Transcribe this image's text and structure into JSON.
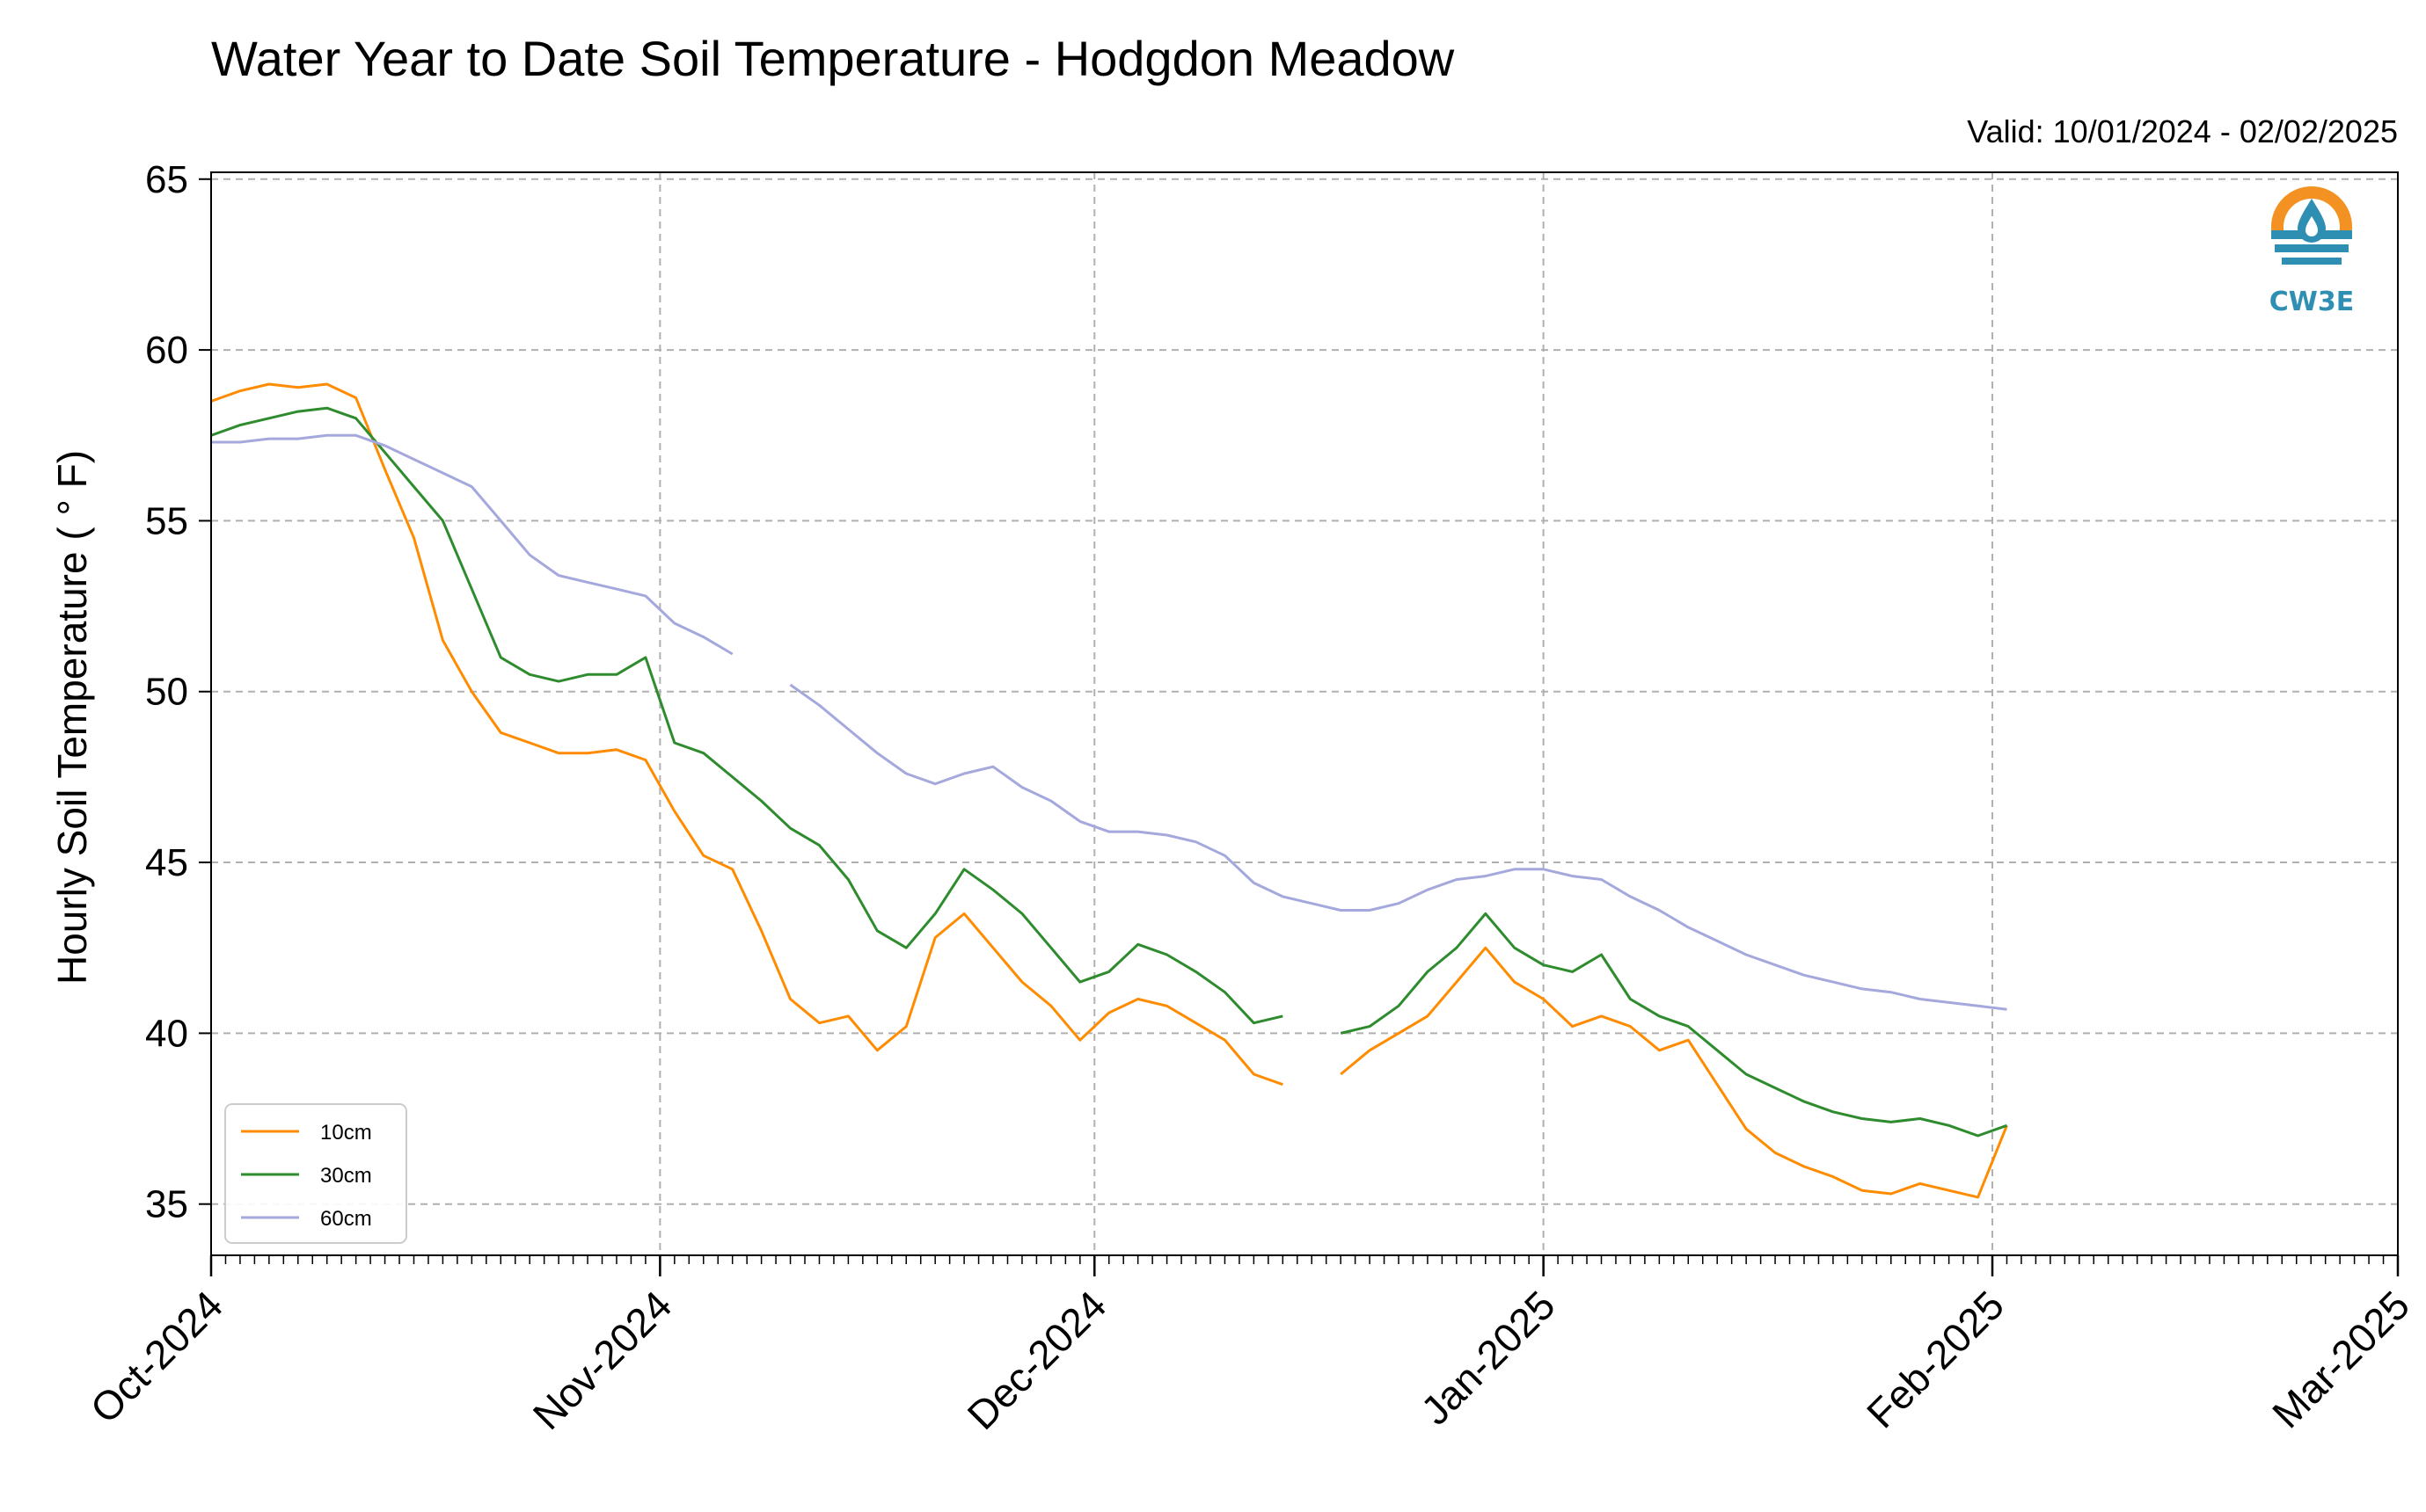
{
  "chart_data": {
    "type": "line",
    "title": "Water Year to Date Soil Temperature - Hodgdon Meadow",
    "subtitle": "Valid: 10/01/2024 - 02/02/2025",
    "xlabel": "",
    "ylabel": "Hourly Soil Temperature ( ° F)",
    "ylim": [
      33.5,
      65.2
    ],
    "yticks": [
      35,
      40,
      45,
      50,
      55,
      60,
      65
    ],
    "xlim": [
      "2024-10-01",
      "2025-03-01"
    ],
    "xtick_dates": [
      "2024-10-01",
      "2024-11-01",
      "2024-12-01",
      "2025-01-01",
      "2025-02-01",
      "2025-03-01"
    ],
    "xtick_labels": [
      "Oct-2024",
      "Nov-2024",
      "Dec-2024",
      "Jan-2025",
      "Feb-2025",
      "Mar-2025"
    ],
    "grid": true,
    "legend_position": "bottom-left",
    "logo_text": "CW3E",
    "series": [
      {
        "name": "10cm",
        "color": "#ff8c00",
        "x": [
          "2024-10-01",
          "2024-10-03",
          "2024-10-05",
          "2024-10-07",
          "2024-10-09",
          "2024-10-11",
          "2024-10-13",
          "2024-10-15",
          "2024-10-17",
          "2024-10-19",
          "2024-10-21",
          "2024-10-23",
          "2024-10-25",
          "2024-10-27",
          "2024-10-29",
          "2024-10-31",
          "2024-11-02",
          "2024-11-04",
          "2024-11-06",
          "2024-11-08",
          "2024-11-10",
          "2024-11-12",
          "2024-11-14",
          "2024-11-16",
          "2024-11-18",
          "2024-11-20",
          "2024-11-22",
          "2024-11-24",
          "2024-11-26",
          "2024-11-28",
          "2024-11-30",
          "2024-12-02",
          "2024-12-04",
          "2024-12-06",
          "2024-12-08",
          "2024-12-10",
          "2024-12-12",
          "2024-12-14",
          "2024-12-16",
          "2024-12-18",
          "2024-12-20",
          "2024-12-22",
          "2024-12-24",
          "2024-12-26",
          "2024-12-28",
          "2024-12-30",
          "2025-01-01",
          "2025-01-03",
          "2025-01-05",
          "2025-01-07",
          "2025-01-09",
          "2025-01-11",
          "2025-01-13",
          "2025-01-15",
          "2025-01-17",
          "2025-01-19",
          "2025-01-21",
          "2025-01-23",
          "2025-01-25",
          "2025-01-27",
          "2025-01-29",
          "2025-01-31",
          "2025-02-02"
        ],
        "y": [
          58.5,
          58.8,
          59.0,
          58.9,
          59.0,
          58.6,
          56.5,
          54.5,
          51.5,
          50.0,
          48.8,
          48.5,
          48.2,
          48.2,
          48.3,
          48.0,
          46.5,
          45.2,
          44.8,
          43.0,
          41.0,
          40.3,
          40.5,
          39.5,
          40.2,
          42.8,
          43.5,
          42.5,
          41.5,
          40.8,
          39.8,
          40.6,
          41.0,
          40.8,
          40.3,
          39.8,
          38.8,
          38.5,
          null,
          38.8,
          39.5,
          40.0,
          40.5,
          41.5,
          42.5,
          41.5,
          41.0,
          40.2,
          40.5,
          40.2,
          39.5,
          39.8,
          38.5,
          37.2,
          36.5,
          36.1,
          35.8,
          35.4,
          35.3,
          35.6,
          35.4,
          35.2,
          37.3
        ]
      },
      {
        "name": "30cm",
        "color": "#2e8b2e",
        "x": [
          "2024-10-01",
          "2024-10-03",
          "2024-10-05",
          "2024-10-07",
          "2024-10-09",
          "2024-10-11",
          "2024-10-13",
          "2024-10-15",
          "2024-10-17",
          "2024-10-19",
          "2024-10-21",
          "2024-10-23",
          "2024-10-25",
          "2024-10-27",
          "2024-10-29",
          "2024-10-31",
          "2024-11-02",
          "2024-11-04",
          "2024-11-06",
          "2024-11-08",
          "2024-11-10",
          "2024-11-12",
          "2024-11-14",
          "2024-11-16",
          "2024-11-18",
          "2024-11-20",
          "2024-11-22",
          "2024-11-24",
          "2024-11-26",
          "2024-11-28",
          "2024-11-30",
          "2024-12-02",
          "2024-12-04",
          "2024-12-06",
          "2024-12-08",
          "2024-12-10",
          "2024-12-12",
          "2024-12-14",
          "2024-12-16",
          "2024-12-18",
          "2024-12-20",
          "2024-12-22",
          "2024-12-24",
          "2024-12-26",
          "2024-12-28",
          "2024-12-30",
          "2025-01-01",
          "2025-01-03",
          "2025-01-05",
          "2025-01-07",
          "2025-01-09",
          "2025-01-11",
          "2025-01-13",
          "2025-01-15",
          "2025-01-17",
          "2025-01-19",
          "2025-01-21",
          "2025-01-23",
          "2025-01-25",
          "2025-01-27",
          "2025-01-29",
          "2025-01-31",
          "2025-02-02"
        ],
        "y": [
          57.5,
          57.8,
          58.0,
          58.2,
          58.3,
          58.0,
          57.0,
          56.0,
          55.0,
          53.0,
          51.0,
          50.5,
          50.3,
          50.5,
          50.5,
          51.0,
          48.5,
          48.2,
          47.5,
          46.8,
          46.0,
          45.5,
          44.5,
          43.0,
          42.5,
          43.5,
          44.8,
          44.2,
          43.5,
          42.5,
          41.5,
          41.8,
          42.6,
          42.3,
          41.8,
          41.2,
          40.3,
          40.5,
          null,
          40.0,
          40.2,
          40.8,
          41.8,
          42.5,
          43.5,
          42.5,
          42.0,
          41.8,
          42.3,
          41.0,
          40.5,
          40.2,
          39.5,
          38.8,
          38.4,
          38.0,
          37.7,
          37.5,
          37.4,
          37.5,
          37.3,
          37.0,
          37.3
        ]
      },
      {
        "name": "60cm",
        "color": "#a5a8dc",
        "x": [
          "2024-10-01",
          "2024-10-03",
          "2024-10-05",
          "2024-10-07",
          "2024-10-09",
          "2024-10-11",
          "2024-10-13",
          "2024-10-15",
          "2024-10-17",
          "2024-10-19",
          "2024-10-21",
          "2024-10-23",
          "2024-10-25",
          "2024-10-27",
          "2024-10-29",
          "2024-10-31",
          "2024-11-02",
          "2024-11-04",
          "2024-11-06",
          "2024-11-08",
          "2024-11-10",
          "2024-11-12",
          "2024-11-14",
          "2024-11-16",
          "2024-11-18",
          "2024-11-20",
          "2024-11-22",
          "2024-11-24",
          "2024-11-26",
          "2024-11-28",
          "2024-11-30",
          "2024-12-02",
          "2024-12-04",
          "2024-12-06",
          "2024-12-08",
          "2024-12-10",
          "2024-12-12",
          "2024-12-14",
          "2024-12-16",
          "2024-12-18",
          "2024-12-20",
          "2024-12-22",
          "2024-12-24",
          "2024-12-26",
          "2024-12-28",
          "2024-12-30",
          "2025-01-01",
          "2025-01-03",
          "2025-01-05",
          "2025-01-07",
          "2025-01-09",
          "2025-01-11",
          "2025-01-13",
          "2025-01-15",
          "2025-01-17",
          "2025-01-19",
          "2025-01-21",
          "2025-01-23",
          "2025-01-25",
          "2025-01-27",
          "2025-01-29",
          "2025-01-31",
          "2025-02-02"
        ],
        "y": [
          57.3,
          57.3,
          57.4,
          57.4,
          57.5,
          57.5,
          57.2,
          56.8,
          56.4,
          56.0,
          55.0,
          54.0,
          53.4,
          53.2,
          53.0,
          52.8,
          52.0,
          51.6,
          51.1,
          null,
          50.2,
          49.6,
          48.9,
          48.2,
          47.6,
          47.3,
          47.6,
          47.8,
          47.2,
          46.8,
          46.2,
          45.9,
          45.9,
          45.8,
          45.6,
          45.2,
          44.4,
          44.0,
          43.8,
          43.6,
          43.6,
          43.8,
          44.2,
          44.5,
          44.6,
          44.8,
          44.8,
          44.6,
          44.5,
          44.0,
          43.6,
          43.1,
          42.7,
          42.3,
          42.0,
          41.7,
          41.5,
          41.3,
          41.2,
          41.0,
          40.9,
          40.8,
          40.7
        ]
      }
    ]
  }
}
